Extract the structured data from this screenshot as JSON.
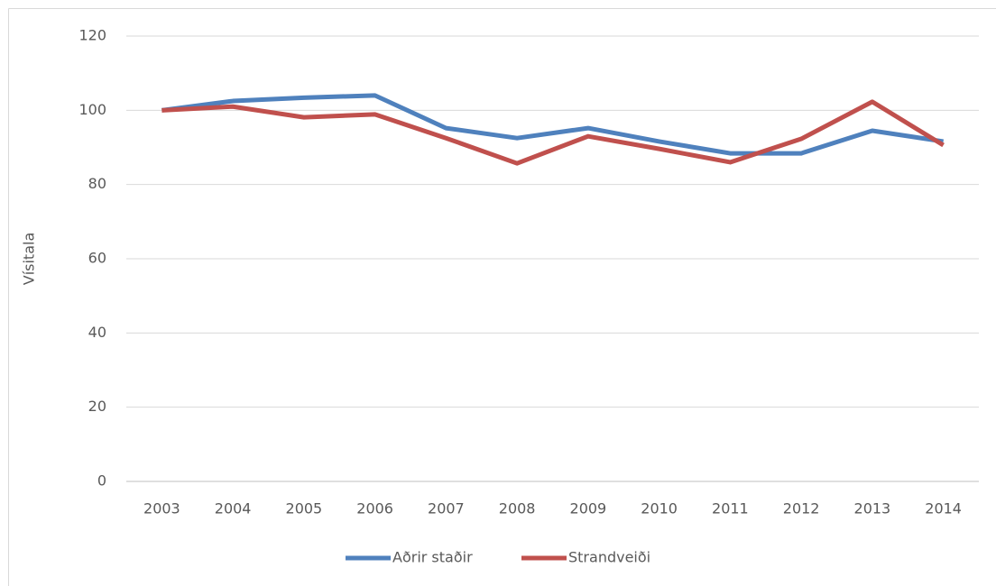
{
  "chart_data": {
    "type": "line",
    "y_label": "Vísitala",
    "categories": [
      "2003",
      "2004",
      "2005",
      "2006",
      "2007",
      "2008",
      "2009",
      "2010",
      "2011",
      "2012",
      "2013",
      "2014"
    ],
    "series": [
      {
        "name": "Aðrir staðir",
        "color": "#4f81bd",
        "values": [
          100,
          102.5,
          103.4,
          104,
          95.2,
          92.5,
          95.2,
          91.6,
          88.4,
          88.4,
          94.5,
          91.6
        ]
      },
      {
        "name": "Strandveiði",
        "color": "#c0504d",
        "values": [
          100,
          101,
          98.1,
          98.9,
          92.5,
          85.7,
          93,
          89.6,
          86,
          92.3,
          102.3,
          90.6
        ]
      }
    ],
    "ylim": [
      0,
      120
    ],
    "yticks": [
      0,
      20,
      40,
      60,
      80,
      100,
      120
    ],
    "grid": true,
    "legend": "bottom"
  }
}
